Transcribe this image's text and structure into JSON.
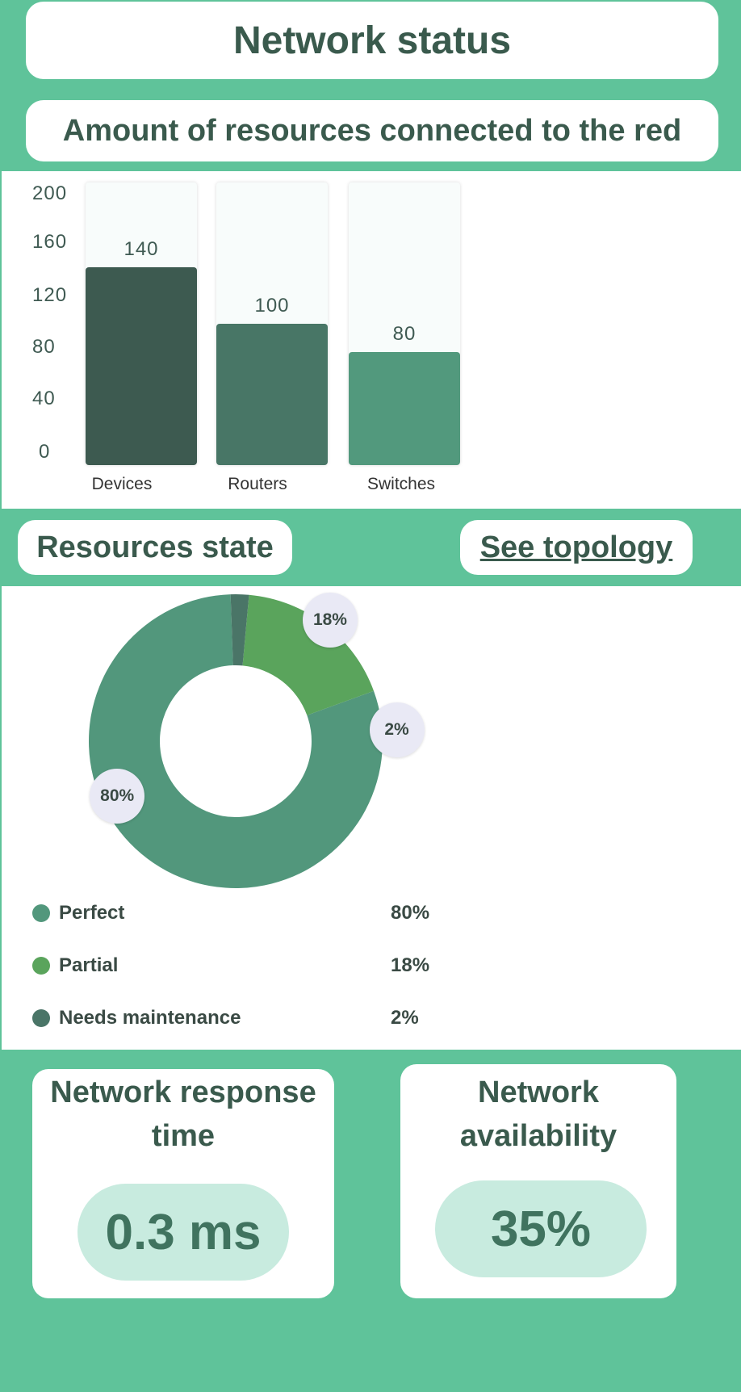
{
  "header": {
    "title": "Network status"
  },
  "bar_section": {
    "title": "Amount of resources connected to the red"
  },
  "state_section": {
    "title": "Resources state",
    "topology_link": "See topology"
  },
  "metrics": {
    "response": {
      "title_line1": "Network response",
      "title_line2": "time",
      "value": "0.3 ms"
    },
    "availability": {
      "title_line1": "Network",
      "title_line2": "availability",
      "value": "35%"
    }
  },
  "colors": {
    "background": "#5fc39a",
    "bar_devices": "#3d5a50",
    "bar_routers": "#487666",
    "bar_switches": "#52997d",
    "perfect": "#52977c",
    "partial": "#5aa45c",
    "maintenance": "#4a7567"
  },
  "chart_data": [
    {
      "type": "bar",
      "title": "Amount of resources connected to the red",
      "categories": [
        "Devices",
        "Routers",
        "Switches"
      ],
      "values": [
        140,
        100,
        80
      ],
      "value_labels": [
        "140",
        "100",
        "80"
      ],
      "yticks": [
        "200",
        "160",
        "120",
        "80",
        "40",
        "0"
      ],
      "ylim": [
        0,
        200
      ],
      "grid": false
    },
    {
      "type": "pie",
      "title": "Resources state",
      "labels": [
        "Perfect",
        "Partial",
        "Needs maintenance"
      ],
      "values": [
        80,
        18,
        2
      ],
      "value_labels": [
        "80%",
        "18%",
        "2%"
      ],
      "donut": true,
      "legend": "bottom"
    }
  ]
}
